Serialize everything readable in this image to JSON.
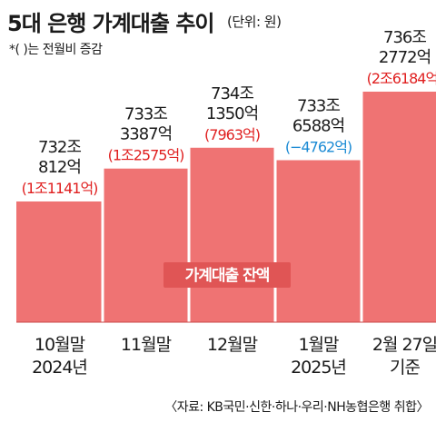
{
  "title": "5대 은행 가계대출 추이",
  "unit": "(단위: 원)",
  "note": "*( )는 전월비 증감",
  "source": "〈자료: KB국민·신한·하나·우리·NH농협은행 취합〉",
  "legend_label": "가계대출 잔액",
  "colors": {
    "bar": "#ef7373",
    "legend_bg": "#e05555",
    "pos": "#e02020",
    "neg": "#1a8ad4"
  },
  "chart_data": {
    "type": "bar",
    "series": [
      {
        "name": "가계대출 잔액",
        "values": [
          732.0812,
          733.3387,
          734.135,
          733.6588,
          736.2772
        ]
      }
    ],
    "categories": [
      [
        "10월말",
        "2024년"
      ],
      [
        "11월말"
      ],
      [
        "12월말"
      ],
      [
        "1월말",
        "2025년"
      ],
      [
        "2월 27일",
        "기준"
      ]
    ],
    "value_labels": [
      [
        "732조",
        "812억"
      ],
      [
        "733조",
        "3387억"
      ],
      [
        "734조",
        "1350억"
      ],
      [
        "733조",
        "6588억"
      ],
      [
        "736조",
        "2772억"
      ]
    ],
    "change_labels": [
      "(1조1141억)",
      "(1조2575억)",
      "(7963억)",
      "(−4762억)",
      "(2조6184억)"
    ],
    "change_sign": [
      "pos",
      "pos",
      "pos",
      "neg",
      "pos"
    ]
  }
}
